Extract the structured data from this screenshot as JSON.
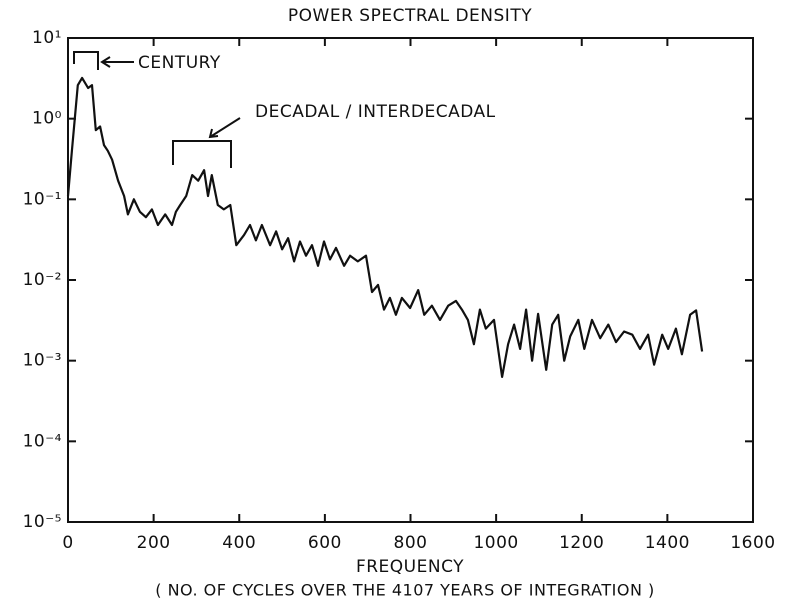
{
  "chart_data": {
    "type": "line",
    "title": "POWER SPECTRAL DENSITY",
    "x_label": "FREQUENCY",
    "x_sublabel": "( NO. OF CYCLES OVER THE 4107 YEARS OF INTEGRATION )",
    "annotations": [
      "CENTURY",
      "DECADAL / INTERDECADAL"
    ],
    "log_y": true,
    "color": "#111111",
    "xlim": [
      0,
      1600
    ],
    "xticks": [
      0,
      200,
      400,
      600,
      800,
      1000,
      1200,
      1400,
      1600
    ],
    "ylim": [
      1e-05,
      10
    ],
    "yticks": [
      {
        "value": 10,
        "label": "10¹"
      },
      {
        "value": 1,
        "label": "10⁰"
      },
      {
        "value": 0.1,
        "label": "10⁻¹"
      },
      {
        "value": 0.01,
        "label": "10⁻²"
      },
      {
        "value": 0.001,
        "label": "10⁻³"
      },
      {
        "value": 0.0001,
        "label": "10⁻⁴"
      },
      {
        "value": 1e-05,
        "label": "10⁻⁵"
      }
    ],
    "x": [
      0,
      9,
      23,
      33,
      47,
      56,
      65,
      75,
      84,
      93,
      103,
      117,
      131,
      140,
      154,
      168,
      182,
      196,
      210,
      227,
      243,
      252,
      262,
      276,
      290,
      304,
      318,
      327,
      336,
      350,
      364,
      379,
      393,
      411,
      425,
      439,
      453,
      472,
      486,
      500,
      514,
      528,
      542,
      556,
      570,
      584,
      598,
      612,
      626,
      645,
      659,
      677,
      696,
      710,
      724,
      738,
      752,
      766,
      780,
      799,
      818,
      832,
      850,
      869,
      888,
      906,
      920,
      934,
      948,
      962,
      976,
      995,
      1014,
      1028,
      1042,
      1056,
      1070,
      1084,
      1098,
      1117,
      1131,
      1145,
      1159,
      1173,
      1192,
      1206,
      1224,
      1243,
      1262,
      1280,
      1299,
      1318,
      1336,
      1355,
      1369,
      1388,
      1402,
      1420,
      1434,
      1453,
      1467,
      1481
    ],
    "values": [
      0.11,
      0.4,
      2.6,
      3.2,
      2.4,
      2.6,
      0.72,
      0.8,
      0.47,
      0.4,
      0.31,
      0.17,
      0.11,
      0.065,
      0.1,
      0.07,
      0.06,
      0.075,
      0.048,
      0.065,
      0.048,
      0.07,
      0.085,
      0.11,
      0.2,
      0.17,
      0.23,
      0.11,
      0.2,
      0.085,
      0.075,
      0.085,
      0.027,
      0.036,
      0.048,
      0.031,
      0.048,
      0.027,
      0.04,
      0.024,
      0.033,
      0.017,
      0.03,
      0.02,
      0.027,
      0.015,
      0.03,
      0.018,
      0.025,
      0.015,
      0.02,
      0.017,
      0.02,
      0.0071,
      0.0087,
      0.0043,
      0.006,
      0.0037,
      0.006,
      0.0045,
      0.0075,
      0.0037,
      0.0048,
      0.0032,
      0.0048,
      0.0055,
      0.0043,
      0.0032,
      0.0016,
      0.0043,
      0.0025,
      0.0032,
      0.00063,
      0.0016,
      0.0028,
      0.0014,
      0.0043,
      0.001,
      0.0038,
      0.00077,
      0.0028,
      0.0037,
      0.001,
      0.002,
      0.0032,
      0.0014,
      0.0032,
      0.0019,
      0.0028,
      0.0017,
      0.0023,
      0.0021,
      0.0014,
      0.0021,
      0.00089,
      0.0021,
      0.0014,
      0.0025,
      0.0012,
      0.0037,
      0.0042,
      0.0013
    ]
  }
}
